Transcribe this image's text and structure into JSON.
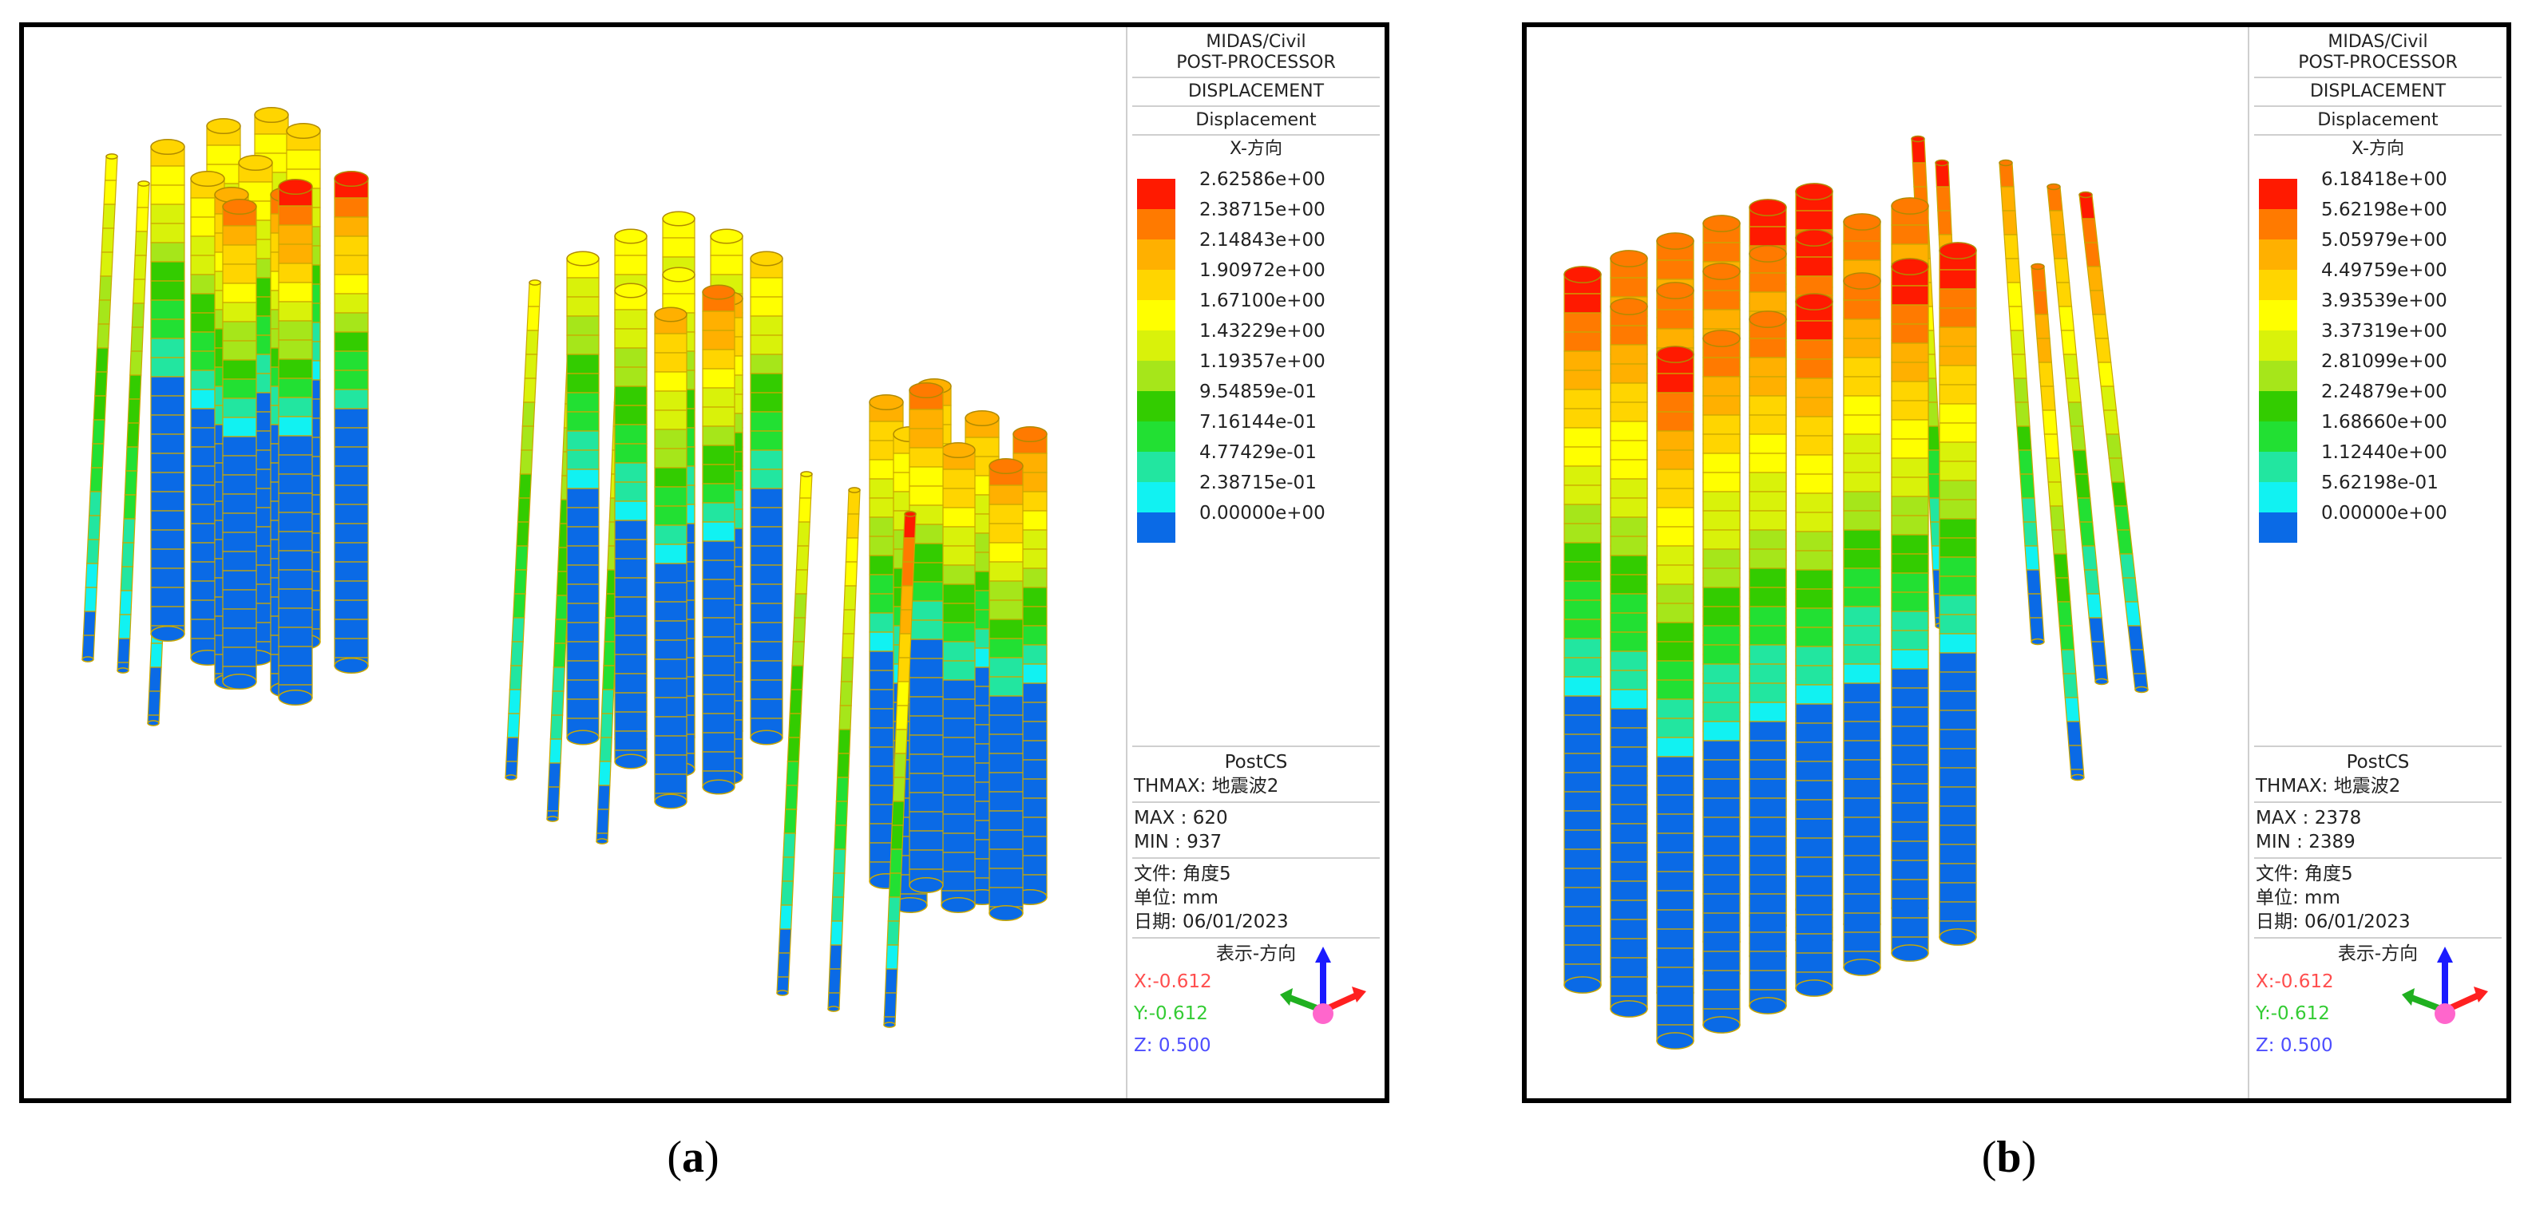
{
  "scale_colors": [
    "#ff1a00",
    "#ff7a00",
    "#ffb000",
    "#ffd500",
    "#ffff00",
    "#d9f20a",
    "#a6e61a",
    "#33cc00",
    "#22e033",
    "#22e6a0",
    "#11f2f2",
    "#0a6ae6"
  ],
  "panels": [
    {
      "label_open": "(",
      "label_letter": "a",
      "label_close": ")",
      "legend": {
        "h1": "MIDAS/Civil",
        "h2": "POST-PROCESSOR",
        "h3": "DISPLACEMENT",
        "h4": "Displacement",
        "h5": "X-方向",
        "values": [
          "2.62586e+00",
          "2.38715e+00",
          "2.14843e+00",
          "1.90972e+00",
          "1.67100e+00",
          "1.43229e+00",
          "1.19357e+00",
          "9.54859e-01",
          "7.16144e-01",
          "4.77429e-01",
          "2.38715e-01",
          "0.00000e+00"
        ],
        "postcs": "PostCS",
        "thmax": "THMAX: 地震波2",
        "max": "MAX : 620",
        "min": "MIN : 937",
        "file": "文件: 角度5",
        "unit": "单位: mm",
        "date": "日期: 06/01/2023",
        "dir_title": "表示-方向",
        "x": "X:-0.612",
        "y": "Y:-0.612",
        "z": "Z: 0.500"
      }
    },
    {
      "label_open": "(",
      "label_letter": "b",
      "label_close": ")",
      "legend": {
        "h1": "MIDAS/Civil",
        "h2": "POST-PROCESSOR",
        "h3": "DISPLACEMENT",
        "h4": "Displacement",
        "h5": "X-方向",
        "values": [
          "6.18418e+00",
          "5.62198e+00",
          "5.05979e+00",
          "4.49759e+00",
          "3.93539e+00",
          "3.37319e+00",
          "2.81099e+00",
          "2.24879e+00",
          "1.68660e+00",
          "1.12440e+00",
          "5.62198e-01",
          "0.00000e+00"
        ],
        "postcs": "PostCS",
        "thmax": "THMAX: 地震波2",
        "max": "MAX : 2378",
        "min": "MIN : 2389",
        "file": "文件: 角度5",
        "unit": "单位: mm",
        "date": "日期: 06/01/2023",
        "dir_title": "表示-方向",
        "x": "X:-0.612",
        "y": "Y:-0.612",
        "z": "Z: 0.500"
      }
    }
  ]
}
